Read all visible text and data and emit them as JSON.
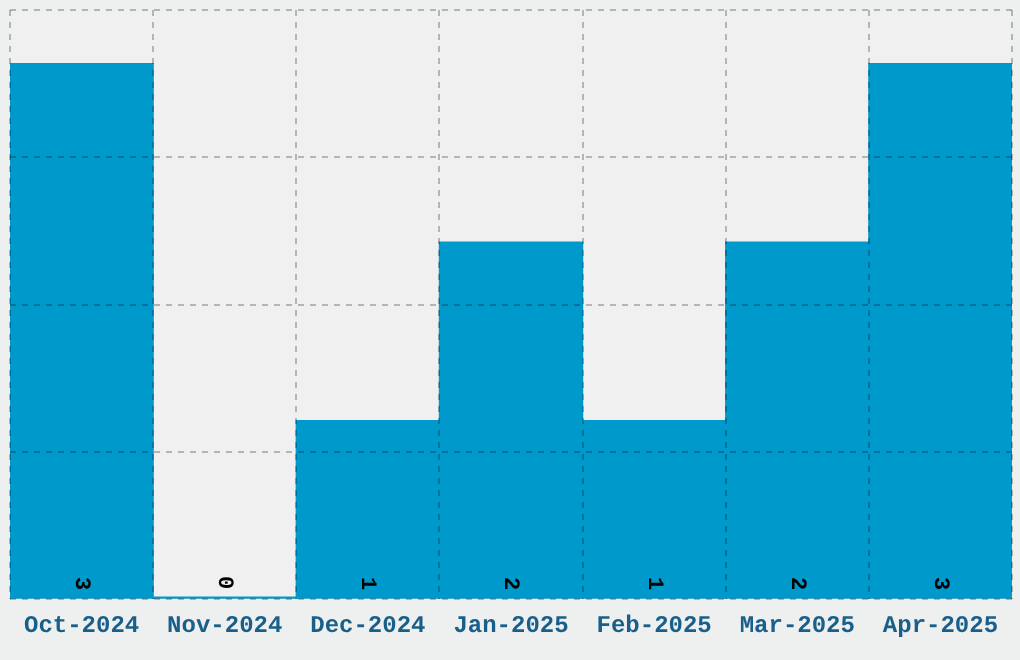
{
  "chart_data": {
    "type": "bar",
    "categories": [
      "Oct-2024",
      "Nov-2024",
      "Dec-2024",
      "Jan-2025",
      "Feb-2025",
      "Mar-2025",
      "Apr-2025"
    ],
    "values": [
      3,
      0,
      1,
      2,
      1,
      2,
      3
    ],
    "color": "#0099cc",
    "data_labels": true,
    "relative": false,
    "grid": true,
    "legend": false,
    "tick_labels": "x",
    "ylim": [
      0,
      3.3
    ],
    "yticks": [
      {
        "value": 0,
        "label": null
      },
      {
        "value": 0.825,
        "label": null
      },
      {
        "value": 1.65,
        "label": null
      },
      {
        "value": 2.475,
        "label": null
      },
      {
        "value": 3.3,
        "label": null
      }
    ]
  }
}
